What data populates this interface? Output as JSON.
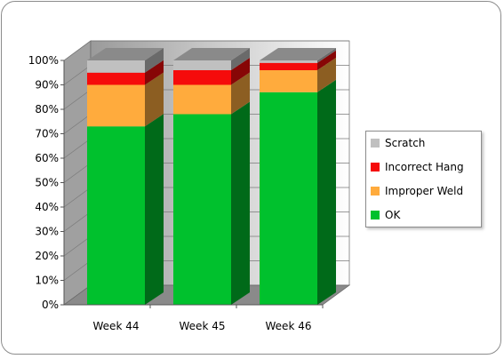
{
  "chart_data": {
    "type": "bar",
    "stacked": true,
    "percent": true,
    "three_d": true,
    "categories": [
      "Week 44",
      "Week 45",
      "Week 46"
    ],
    "series": [
      {
        "name": "OK",
        "values": [
          73,
          78,
          87
        ],
        "color": "#00c12d"
      },
      {
        "name": "Improper Weld",
        "values": [
          17,
          12,
          9
        ],
        "color": "#ffab3d"
      },
      {
        "name": "Incorrect Hang",
        "values": [
          5,
          6,
          3
        ],
        "color": "#f50b0b"
      },
      {
        "name": "Scratch",
        "values": [
          5,
          4,
          1
        ],
        "color": "#c0c0c0"
      }
    ],
    "y_ticks": [
      "0%",
      "10%",
      "20%",
      "30%",
      "40%",
      "50%",
      "60%",
      "70%",
      "80%",
      "90%",
      "100%"
    ],
    "ylim": [
      0,
      100
    ],
    "grid": true,
    "legend_position": "right",
    "legend_order": [
      "Scratch",
      "Incorrect Hang",
      "Improper Weld",
      "OK"
    ]
  }
}
